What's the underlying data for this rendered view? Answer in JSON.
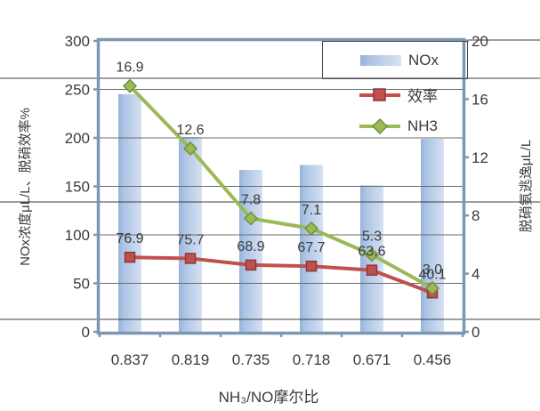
{
  "chart_data": {
    "type": "combo-bar-line",
    "title": "",
    "categories": [
      "0.837",
      "0.819",
      "0.735",
      "0.718",
      "0.671",
      "0.456"
    ],
    "series": [
      {
        "name": "NOx",
        "type": "bar",
        "axis": "left",
        "values": [
          245,
          201,
          167,
          172,
          151,
          199
        ],
        "color": "#abc3e5",
        "color_edge": "#96b2d8",
        "color_light": "#d6e1f2"
      },
      {
        "name": "效率",
        "type": "line",
        "axis": "left",
        "marker": "square",
        "values": [
          76.9,
          75.7,
          68.9,
          67.7,
          63.6,
          40.1
        ],
        "labels": [
          "76.9",
          "75.7",
          "68.9",
          "67.7",
          "63.6",
          "40.1"
        ],
        "color": "#c0504d",
        "marker_border": "#8e3835"
      },
      {
        "name": "NH3",
        "type": "line",
        "axis": "right",
        "marker": "diamond",
        "values": [
          16.9,
          12.6,
          7.8,
          7.1,
          5.3,
          3.0
        ],
        "labels": [
          "16.9",
          "12.6",
          "7.8",
          "7.1",
          "5.3",
          "3.0"
        ],
        "color": "#9aba58",
        "marker_border": "#75903c"
      }
    ],
    "left_axis": {
      "title": "NOx浓度μL/L、脱硝效率%",
      "min": 0,
      "max": 300,
      "ticks": [
        0,
        50,
        100,
        150,
        200,
        250,
        300
      ]
    },
    "right_axis": {
      "title": "脱硝氨逃逸μL/L",
      "min": 0,
      "max": 20,
      "ticks": [
        0,
        4,
        8,
        12,
        16,
        20
      ]
    },
    "x_axis": {
      "title": "NH₃/NO摩尔比"
    },
    "legend": {
      "items": [
        "NOx",
        "效率",
        "NH3"
      ],
      "position": "top-right"
    },
    "grid": "horizontal",
    "colors": {
      "frame": "#7d97b3",
      "gridline": "#6b6b6b",
      "artifact_line": "#3c3c3c",
      "text": "#3a3a3a"
    }
  }
}
